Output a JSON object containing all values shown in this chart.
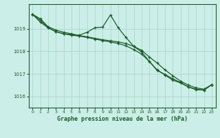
{
  "title": "Graphe pression niveau de la mer (hPa)",
  "background_color": "#cceee8",
  "grid_color": "#aad8cc",
  "line_color": "#1a5c28",
  "xlim": [
    -0.5,
    23.5
  ],
  "ylim": [
    1015.5,
    1020.1
  ],
  "yticks": [
    1016,
    1017,
    1018,
    1019
  ],
  "xticks": [
    0,
    1,
    2,
    3,
    4,
    5,
    6,
    7,
    8,
    9,
    10,
    11,
    12,
    13,
    14,
    15,
    16,
    17,
    18,
    19,
    20,
    21,
    22,
    23
  ],
  "line1": {
    "x": [
      0,
      1,
      2,
      3,
      4,
      5,
      6,
      7,
      8,
      9,
      10,
      11,
      12,
      13,
      14,
      15,
      16,
      17,
      18,
      19,
      20,
      21,
      22,
      23
    ],
    "y": [
      1019.65,
      1019.45,
      1019.1,
      1018.95,
      1018.85,
      1018.78,
      1018.7,
      1018.65,
      1018.58,
      1018.52,
      1018.47,
      1018.42,
      1018.35,
      1018.22,
      1018.05,
      1017.75,
      1017.48,
      1017.18,
      1016.92,
      1016.68,
      1016.5,
      1016.38,
      1016.32,
      1016.52
    ]
  },
  "line2": {
    "x": [
      0,
      1,
      2,
      3,
      4,
      5,
      6,
      7,
      8,
      9,
      10,
      11,
      12,
      13,
      14,
      15,
      16,
      17,
      18,
      19,
      20,
      21,
      22,
      23
    ],
    "y": [
      1019.65,
      1019.38,
      1019.05,
      1018.88,
      1018.78,
      1018.75,
      1018.72,
      1018.85,
      1019.05,
      1019.08,
      1019.62,
      1019.05,
      1018.62,
      1018.22,
      1017.98,
      1017.55,
      1017.15,
      1016.98,
      1016.78,
      1016.62,
      1016.42,
      1016.32,
      1016.28,
      1016.52
    ]
  },
  "line3": {
    "x": [
      0,
      1,
      2,
      3,
      4,
      5,
      6,
      7,
      8,
      9,
      10,
      11,
      12,
      13,
      14,
      15,
      16,
      17,
      18,
      19,
      20,
      21,
      22,
      23
    ],
    "y": [
      1019.65,
      1019.3,
      1019.05,
      1018.88,
      1018.78,
      1018.72,
      1018.68,
      1018.62,
      1018.55,
      1018.48,
      1018.42,
      1018.35,
      1018.25,
      1018.08,
      1017.88,
      1017.55,
      1017.18,
      1016.95,
      1016.72,
      1016.6,
      1016.42,
      1016.3,
      1016.28,
      1016.52
    ]
  }
}
